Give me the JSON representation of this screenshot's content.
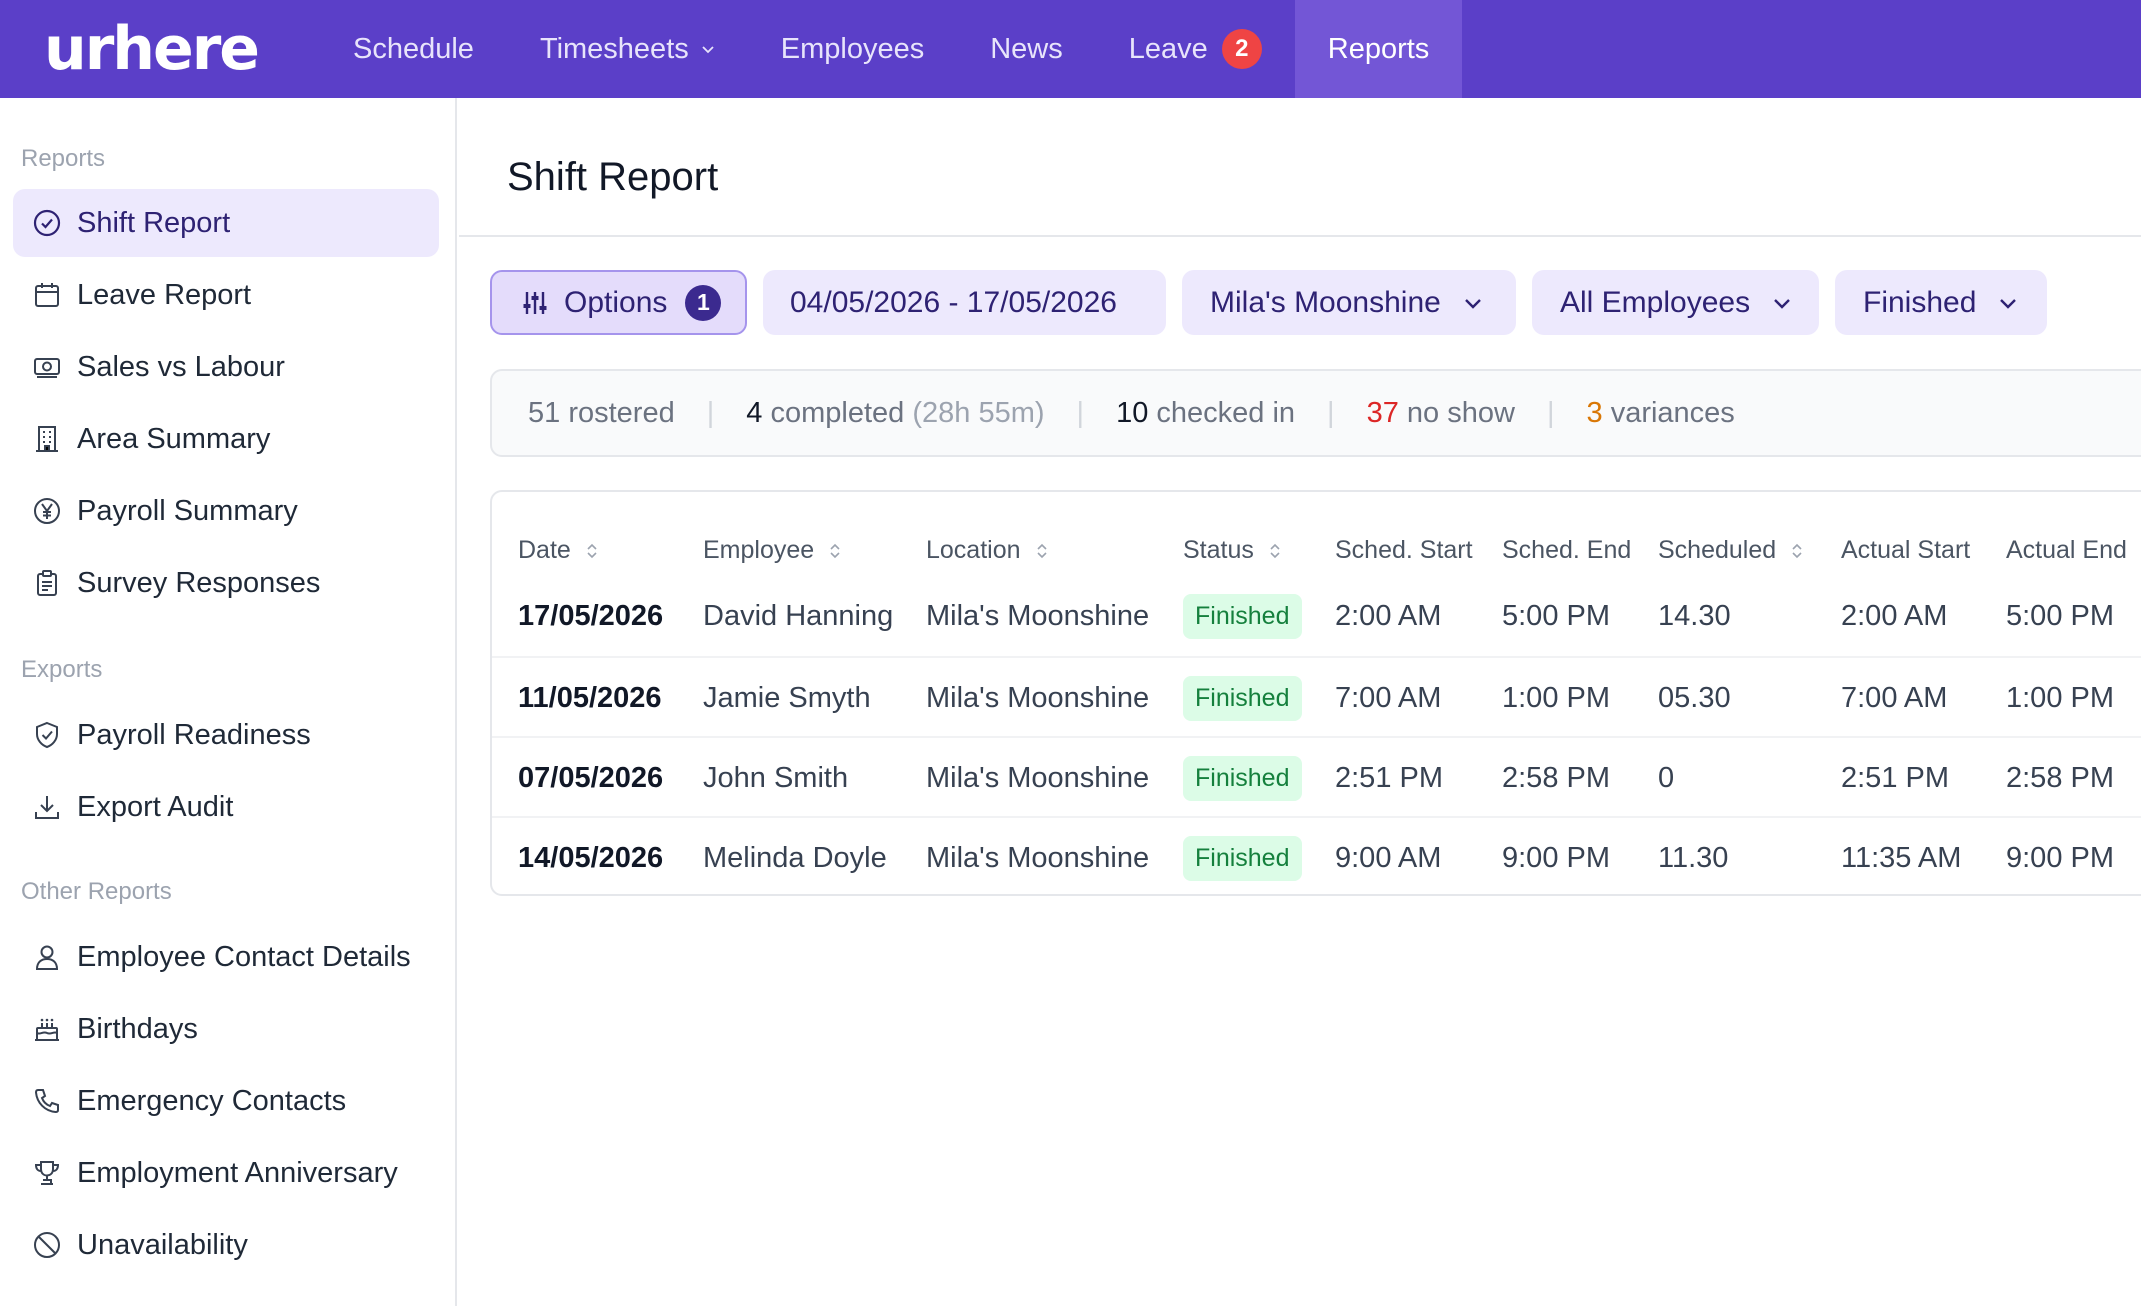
{
  "app": {
    "logo": "urhere"
  },
  "nav": {
    "items": [
      {
        "label": "Schedule"
      },
      {
        "label": "Timesheets",
        "has_dropdown": true
      },
      {
        "label": "Employees"
      },
      {
        "label": "News"
      },
      {
        "label": "Leave",
        "badge": "2"
      },
      {
        "label": "Reports",
        "active": true
      }
    ]
  },
  "sidebar": {
    "sections": [
      {
        "title": "Reports",
        "items": [
          {
            "label": "Shift Report",
            "icon": "check-circle-icon",
            "active": true
          },
          {
            "label": "Leave Report",
            "icon": "calendar-icon"
          },
          {
            "label": "Sales vs Labour",
            "icon": "money-icon"
          },
          {
            "label": "Area Summary",
            "icon": "building-icon"
          },
          {
            "label": "Payroll Summary",
            "icon": "currency-yen-icon"
          },
          {
            "label": "Survey Responses",
            "icon": "clipboard-icon"
          }
        ]
      },
      {
        "title": "Exports",
        "items": [
          {
            "label": "Payroll Readiness",
            "icon": "shield-check-icon"
          },
          {
            "label": "Export Audit",
            "icon": "download-icon"
          }
        ]
      },
      {
        "title": "Other Reports",
        "items": [
          {
            "label": "Employee Contact Details",
            "icon": "user-icon"
          },
          {
            "label": "Birthdays",
            "icon": "cake-icon"
          },
          {
            "label": "Emergency Contacts",
            "icon": "phone-icon"
          },
          {
            "label": "Employment Anniversary",
            "icon": "trophy-icon"
          },
          {
            "label": "Unavailability",
            "icon": "ban-icon"
          }
        ]
      }
    ]
  },
  "main": {
    "title": "Shift Report",
    "filters": {
      "options_label": "Options",
      "options_count": "1",
      "date_range": "04/05/2026 - 17/05/2026",
      "location": "Mila's Moonshine",
      "employees": "All Employees",
      "status": "Finished"
    },
    "stats": {
      "rostered_num": "51",
      "rostered_label": "rostered",
      "completed_num": "4",
      "completed_label": "completed",
      "completed_hours": "(28h 55m)",
      "checked_in_num": "10",
      "checked_in_label": "checked in",
      "no_show_num": "37",
      "no_show_label": "no show",
      "variances_num": "3",
      "variances_label": "variances",
      "separator": "|"
    },
    "table": {
      "columns": [
        "Date",
        "Employee",
        "Location",
        "Status",
        "Sched. Start",
        "Sched. End",
        "Scheduled",
        "Actual Start",
        "Actual End"
      ],
      "rows": [
        [
          "17/05/2026",
          "David Hanning",
          "Mila's Moonshine",
          "Finished",
          "2:00 AM",
          "5:00 PM",
          "14.30",
          "2:00 AM",
          "5:00 PM"
        ],
        [
          "11/05/2026",
          "Jamie Smyth",
          "Mila's Moonshine",
          "Finished",
          "7:00 AM",
          "1:00 PM",
          "05.30",
          "7:00 AM",
          "1:00 PM"
        ],
        [
          "07/05/2026",
          "John Smith",
          "Mila's Moonshine",
          "Finished",
          "2:51 PM",
          "2:58 PM",
          "0",
          "2:51 PM",
          "2:58 PM"
        ],
        [
          "14/05/2026",
          "Melinda Doyle",
          "Mila's Moonshine",
          "Finished",
          "9:00 AM",
          "9:00 PM",
          "11.30",
          "11:35 AM",
          "9:00 PM"
        ]
      ]
    }
  },
  "colors": {
    "brand": "#5b3fc8",
    "nav_active": "#7356d6",
    "filter_bg": "#ede9fd",
    "status_finished_bg": "#dcfce7",
    "status_finished_text": "#15803d",
    "no_show": "#dc2626",
    "variances": "#d97706",
    "badge": "#ef4444"
  }
}
